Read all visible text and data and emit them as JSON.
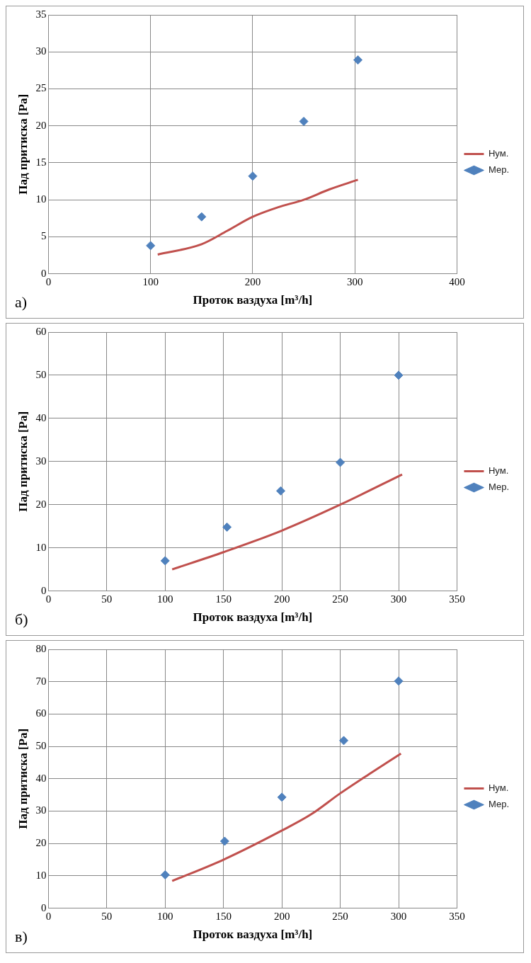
{
  "chart_data": [
    {
      "type": "scatter",
      "xlabel": "Проток ваздуха [m³/h]",
      "ylabel": "Пад притиска [Pa]",
      "xlim": [
        0,
        400
      ],
      "xticks": [
        0,
        100,
        200,
        300,
        400
      ],
      "ylim": [
        0,
        35
      ],
      "yticks": [
        0,
        5,
        10,
        15,
        20,
        25,
        30,
        35
      ],
      "grid": true,
      "legend": "right",
      "annotations": [
        "а)"
      ],
      "series": [
        {
          "name": "Нум.",
          "type": "line",
          "color": "#c0504d",
          "marker": "none",
          "x": [
            107,
            150,
            175,
            200,
            225,
            250,
            275,
            303
          ],
          "values": [
            2.6,
            4,
            5.8,
            7.7,
            9,
            10,
            11.4,
            12.7
          ]
        },
        {
          "name": "Мер.",
          "color": "#4f81bd",
          "marker": "diamond",
          "x": [
            100,
            150,
            200,
            250,
            303
          ],
          "values": [
            3.8,
            7.7,
            13.2,
            20.6,
            28.9
          ]
        }
      ]
    },
    {
      "type": "scatter",
      "xlabel": "Проток ваздуха [m³/h]",
      "ylabel": "Пад притиска [Pa]",
      "xlim": [
        0,
        350
      ],
      "xticks": [
        0,
        50,
        100,
        150,
        200,
        250,
        300,
        350
      ],
      "ylim": [
        0,
        60
      ],
      "yticks": [
        0,
        10,
        20,
        30,
        40,
        50,
        60
      ],
      "grid": true,
      "legend": "right",
      "annotations": [
        "б)"
      ],
      "series": [
        {
          "name": "Нум.",
          "type": "line",
          "color": "#c0504d",
          "marker": "none",
          "x": [
            106,
            150,
            200,
            250,
            303
          ],
          "values": [
            5,
            9,
            14,
            20,
            27
          ]
        },
        {
          "name": "Мер.",
          "color": "#4f81bd",
          "marker": "diamond",
          "x": [
            100,
            153,
            199,
            250,
            300
          ],
          "values": [
            7,
            14.8,
            23.2,
            29.8,
            50
          ]
        }
      ]
    },
    {
      "type": "scatter",
      "xlabel": "Проток ваздуха [m³/h]",
      "ylabel": "Пад притиска [Pa]",
      "xlim": [
        0,
        350
      ],
      "xticks": [
        0,
        50,
        100,
        150,
        200,
        250,
        300,
        350
      ],
      "ylim": [
        0,
        80
      ],
      "yticks": [
        0,
        10,
        20,
        30,
        40,
        50,
        60,
        70,
        80
      ],
      "grid": true,
      "legend": "right",
      "annotations": [
        "в)"
      ],
      "series": [
        {
          "name": "Нум.",
          "type": "line",
          "color": "#c0504d",
          "marker": "none",
          "x": [
            106,
            150,
            200,
            225,
            250,
            275,
            302
          ],
          "values": [
            8.4,
            15,
            24,
            29,
            35.5,
            41.5,
            47.8
          ]
        },
        {
          "name": "Мер.",
          "color": "#4f81bd",
          "marker": "diamond",
          "x": [
            100,
            151,
            200,
            253,
            300
          ],
          "values": [
            10.3,
            20.7,
            34.3,
            51.8,
            70.2
          ]
        }
      ]
    }
  ]
}
